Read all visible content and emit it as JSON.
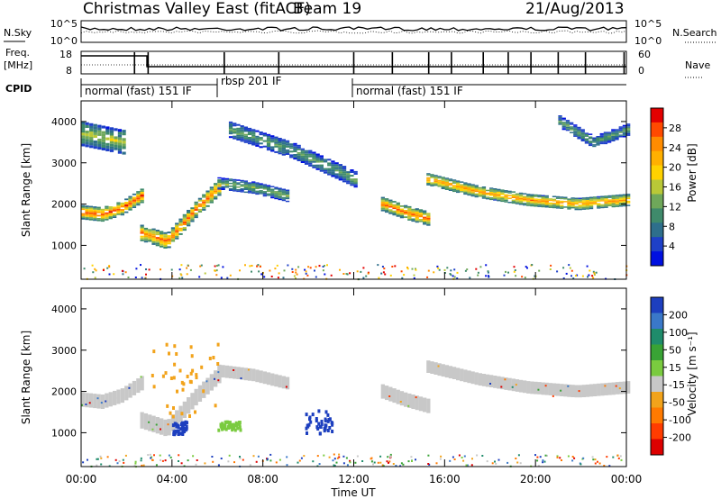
{
  "header": {
    "title": "Christmas Valley East (fitACF)",
    "beam": "Beam 19",
    "date": "21/Aug/2013"
  },
  "status_panels": {
    "nsky_label": "N.Sky",
    "nsky_ticks": [
      "10^5",
      "10^0"
    ],
    "nsearch_label": "N.Search",
    "nsearch_ticks": [
      "10^5",
      "10^0"
    ],
    "freq_label_line1": "Freq.",
    "freq_label_line2": "[MHz]",
    "freq_ticks": [
      "18",
      "8"
    ],
    "nave_label": "Nave",
    "nave_ticks": [
      "60",
      "0"
    ],
    "cpid_label": "CPID",
    "cpid_segments": [
      {
        "label": "normal (fast) 151 IF",
        "start_h": 0,
        "end_h": 6
      },
      {
        "label": "rbsp 201 IF",
        "start_h": 6,
        "end_h": 12.1
      },
      {
        "label": "normal (fast) 151 IF",
        "start_h": 12.1,
        "end_h": 24
      }
    ]
  },
  "axes": {
    "ylabel": "Slant Range [km]",
    "yticks": [
      1000,
      2000,
      3000,
      4000
    ],
    "ylim": [
      180,
      4500
    ],
    "xlabel": "Time UT",
    "xticks": [
      "00:00",
      "04:00",
      "08:00",
      "12:00",
      "16:00",
      "20:00",
      "00:00"
    ],
    "xlim_hours": [
      0,
      24
    ]
  },
  "colorbars": {
    "power": {
      "label": "Power [dB]",
      "ticks": [
        "28",
        "24",
        "20",
        "16",
        "12",
        "8",
        "4"
      ],
      "colors": [
        "#e30000",
        "#ff4a00",
        "#ff8c00",
        "#ffb000",
        "#ffd200",
        "#b9c837",
        "#6fa85a",
        "#3f8a6b",
        "#2e6f8c",
        "#1e40c8",
        "#0010e0"
      ]
    },
    "velocity": {
      "label": "Velocity [m s⁻¹]",
      "ticks": [
        "200",
        "100",
        "50",
        "15",
        "-15",
        "-50",
        "-100",
        "-200"
      ],
      "colors": [
        "#1d3fbf",
        "#3a78c9",
        "#1f8c6b",
        "#39a335",
        "#7acb3f",
        "#c8c8c8",
        "#f2a31b",
        "#ff7a00",
        "#ff3c00",
        "#dd0000"
      ]
    }
  },
  "chart_data": {
    "type": "heatmap",
    "description_units": {
      "x": "hours UT",
      "y": "km"
    },
    "power_panel": {
      "bands": [
        {
          "start_h": 0.0,
          "end_h": 2.6,
          "center_km": [
            1800,
            1750,
            1900,
            2200
          ],
          "width_km": 350,
          "peak_db": 28
        },
        {
          "start_h": 2.6,
          "end_h": 6.0,
          "center_km": [
            1300,
            1100,
            1800,
            2400
          ],
          "width_km": 400,
          "peak_db": 26
        },
        {
          "start_h": 6.0,
          "end_h": 9.0,
          "center_km": [
            2500,
            2400,
            2200
          ],
          "width_km": 300,
          "peak_db": 14
        },
        {
          "start_h": 13.2,
          "end_h": 15.2,
          "center_km": [
            2000,
            1800,
            1650
          ],
          "width_km": 350,
          "peak_db": 26
        },
        {
          "start_h": 15.2,
          "end_h": 24.0,
          "center_km": [
            2600,
            2300,
            2100,
            2000,
            2100
          ],
          "width_km": 300,
          "peak_db": 24
        }
      ],
      "upper_echoes": [
        {
          "start_h": 0.0,
          "end_h": 1.8,
          "center_km": [
            3700,
            3500
          ],
          "width_km": 600,
          "peak_db": 16
        },
        {
          "start_h": 6.5,
          "end_h": 12.0,
          "center_km": [
            3800,
            3300,
            2600
          ],
          "width_km": 400,
          "peak_db": 12
        },
        {
          "start_h": 21.0,
          "end_h": 24.0,
          "center_km": [
            4000,
            3500,
            3800
          ],
          "width_km": 300,
          "peak_db": 12
        }
      ]
    },
    "velocity_panel": {
      "dominant_km_range": [
        1500,
        2800
      ],
      "dominant_velocity": "-15 to 15",
      "features": [
        {
          "start_h": 3.0,
          "end_h": 6.0,
          "velocity": -60,
          "km": [
            1400,
            3200
          ]
        },
        {
          "start_h": 9.8,
          "end_h": 11.0,
          "velocity": 180,
          "km": [
            1000,
            1600
          ]
        },
        {
          "start_h": 4.0,
          "end_h": 4.6,
          "velocity": 160,
          "km": [
            1000,
            1300
          ]
        },
        {
          "start_h": 6.0,
          "end_h": 7.0,
          "velocity": 60,
          "km": [
            1100,
            1300
          ]
        }
      ]
    }
  }
}
